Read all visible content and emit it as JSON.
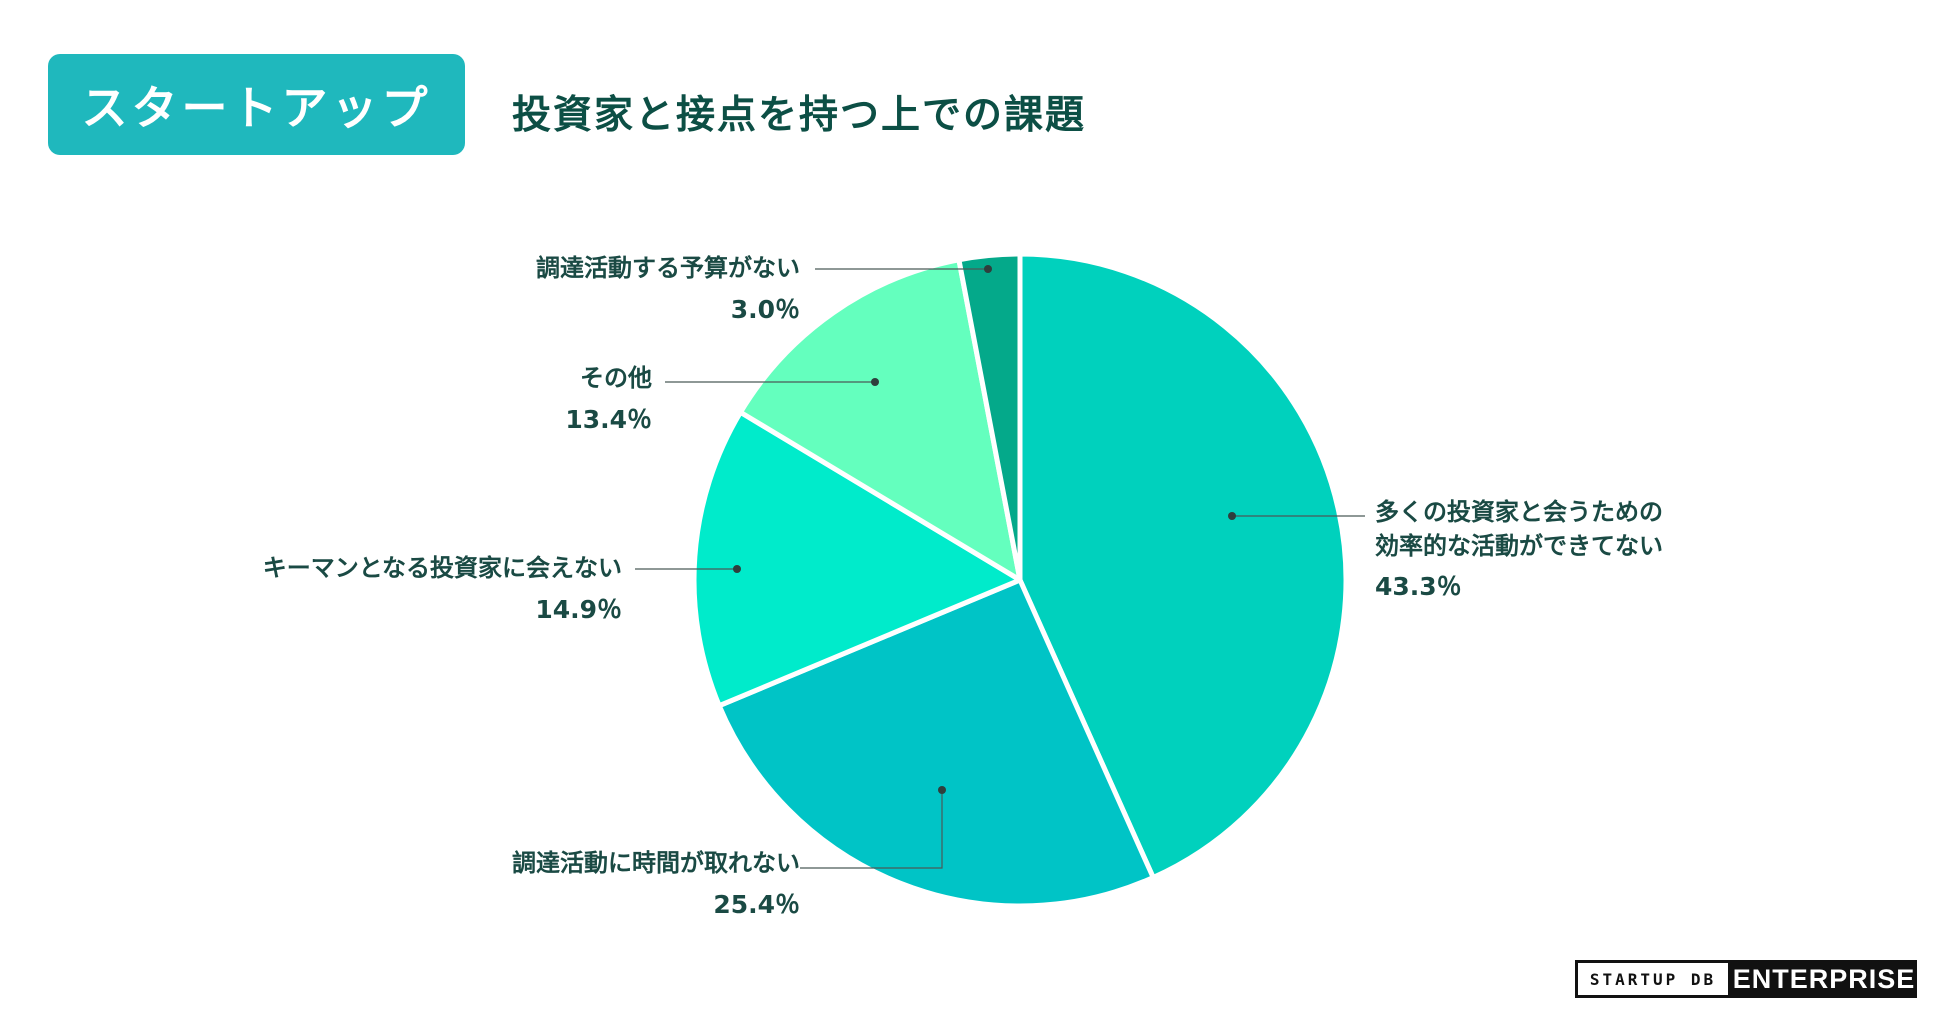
{
  "header": {
    "badge": "スタートアップ",
    "title": "投資家と接点を持つ上での課題"
  },
  "chart_data": {
    "type": "pie",
    "start": "12 o'clock",
    "direction": "clockwise",
    "slices": [
      {
        "label": "多くの投資家と会うための効率的な活動ができてない",
        "label_lines": [
          "多くの投資家と会うための",
          "効率的な活動ができてない"
        ],
        "value": 43.3,
        "display": "43.3％",
        "color": "#00d1bd"
      },
      {
        "label": "調達活動に時間が取れない",
        "label_lines": [
          "調達活動に時間が取れない"
        ],
        "value": 25.4,
        "display": "25.4％",
        "color": "#00c4c6"
      },
      {
        "label": "キーマンとなる投資家に会えない",
        "label_lines": [
          "キーマンとなる投資家に会えない"
        ],
        "value": 14.9,
        "display": "14.9％",
        "color": "#00ebcb"
      },
      {
        "label": "その他",
        "label_lines": [
          "その他"
        ],
        "value": 13.4,
        "display": "13.4％",
        "color": "#64ffbe"
      },
      {
        "label": "調達活動する予算がない",
        "label_lines": [
          "調達活動する予算がない"
        ],
        "value": 3.0,
        "display": "3.0％",
        "color": "#04a98a"
      }
    ],
    "legend": "none"
  },
  "footer": {
    "brand_left": "STARTUP DB",
    "brand_right": "ENTERPRISE"
  }
}
